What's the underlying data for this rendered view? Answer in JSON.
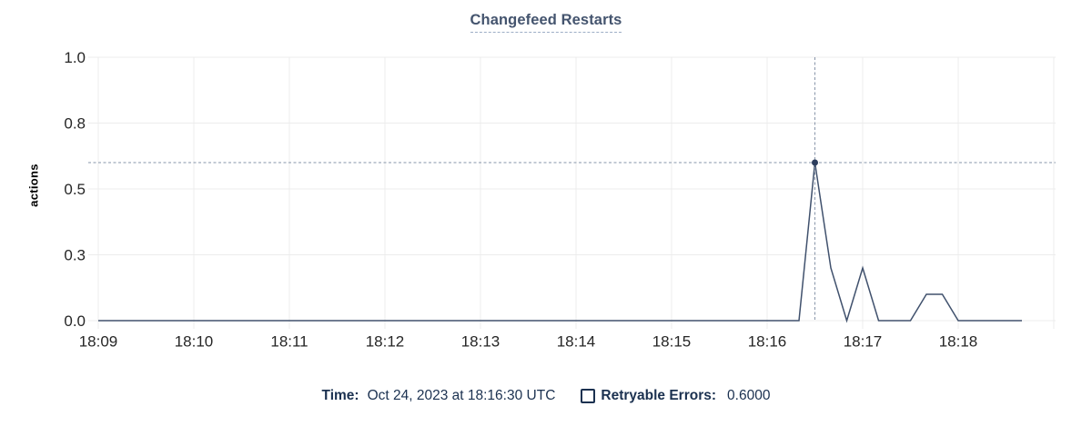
{
  "title": {
    "text": "Changefeed Restarts"
  },
  "y_axis_label": "actions",
  "footer": {
    "time_label": "Time:",
    "time_value": "Oct 24, 2023 at 18:16:30 UTC",
    "series_label": "Retryable Errors:",
    "series_value": "0.6000",
    "checkbox_icon": "checkbox-unchecked"
  },
  "colors": {
    "background": "#ffffff",
    "title_text": "#44546e",
    "title_underline": "#9cadc6",
    "axis_text": "#262626",
    "grid": "#ececec",
    "line": "#40516d",
    "crosshair": "#8794a8",
    "hover_dot": "#2c3d5d",
    "footer_text": "#1b3150"
  },
  "chart_data": {
    "type": "line",
    "title": "Changefeed Restarts",
    "xlabel": "",
    "ylabel": "actions",
    "ylim": [
      0,
      1.0
    ],
    "grid": true,
    "legend_position": "bottom",
    "y_ticks": [
      {
        "value": 0.0,
        "label": "0.0"
      },
      {
        "value": 0.25,
        "label": "0.3"
      },
      {
        "value": 0.5,
        "label": "0.5"
      },
      {
        "value": 0.75,
        "label": "0.8"
      },
      {
        "value": 1.0,
        "label": "1.0"
      }
    ],
    "x_ticks": [
      {
        "minute": 0,
        "label": "18:09"
      },
      {
        "minute": 1,
        "label": "18:10"
      },
      {
        "minute": 2,
        "label": "18:11"
      },
      {
        "minute": 3,
        "label": "18:12"
      },
      {
        "minute": 4,
        "label": "18:13"
      },
      {
        "minute": 5,
        "label": "18:14"
      },
      {
        "minute": 6,
        "label": "18:15"
      },
      {
        "minute": 7,
        "label": "18:16"
      },
      {
        "minute": 8,
        "label": "18:17"
      },
      {
        "minute": 9,
        "label": "18:18"
      },
      {
        "minute": 10,
        "label": ""
      }
    ],
    "series": [
      {
        "name": "Retryable Errors",
        "points": [
          [
            "18:09:00",
            0
          ],
          [
            "18:09:10",
            0
          ],
          [
            "18:09:20",
            0
          ],
          [
            "18:09:30",
            0
          ],
          [
            "18:09:40",
            0
          ],
          [
            "18:09:50",
            0
          ],
          [
            "18:10:00",
            0
          ],
          [
            "18:10:10",
            0
          ],
          [
            "18:10:20",
            0
          ],
          [
            "18:10:30",
            0
          ],
          [
            "18:10:40",
            0
          ],
          [
            "18:10:50",
            0
          ],
          [
            "18:11:00",
            0
          ],
          [
            "18:11:10",
            0
          ],
          [
            "18:11:20",
            0
          ],
          [
            "18:11:30",
            0
          ],
          [
            "18:11:40",
            0
          ],
          [
            "18:11:50",
            0
          ],
          [
            "18:12:00",
            0
          ],
          [
            "18:12:10",
            0
          ],
          [
            "18:12:20",
            0
          ],
          [
            "18:12:30",
            0
          ],
          [
            "18:12:40",
            0
          ],
          [
            "18:12:50",
            0
          ],
          [
            "18:13:00",
            0
          ],
          [
            "18:13:10",
            0
          ],
          [
            "18:13:20",
            0
          ],
          [
            "18:13:30",
            0
          ],
          [
            "18:13:40",
            0
          ],
          [
            "18:13:50",
            0
          ],
          [
            "18:14:00",
            0
          ],
          [
            "18:14:10",
            0
          ],
          [
            "18:14:20",
            0
          ],
          [
            "18:14:30",
            0
          ],
          [
            "18:14:40",
            0
          ],
          [
            "18:14:50",
            0
          ],
          [
            "18:15:00",
            0
          ],
          [
            "18:15:10",
            0
          ],
          [
            "18:15:20",
            0
          ],
          [
            "18:15:30",
            0
          ],
          [
            "18:15:40",
            0
          ],
          [
            "18:15:50",
            0
          ],
          [
            "18:16:00",
            0
          ],
          [
            "18:16:10",
            0
          ],
          [
            "18:16:20",
            0
          ],
          [
            "18:16:30",
            0.6
          ],
          [
            "18:16:40",
            0.2
          ],
          [
            "18:16:50",
            0
          ],
          [
            "18:17:00",
            0.2
          ],
          [
            "18:17:10",
            0
          ],
          [
            "18:17:20",
            0
          ],
          [
            "18:17:30",
            0
          ],
          [
            "18:17:40",
            0.1
          ],
          [
            "18:17:50",
            0.1
          ],
          [
            "18:18:00",
            0
          ],
          [
            "18:18:10",
            0
          ],
          [
            "18:18:20",
            0
          ],
          [
            "18:18:30",
            0
          ],
          [
            "18:18:40",
            0
          ]
        ]
      }
    ],
    "hover": {
      "time": "18:16:30",
      "value": 0.6
    }
  }
}
